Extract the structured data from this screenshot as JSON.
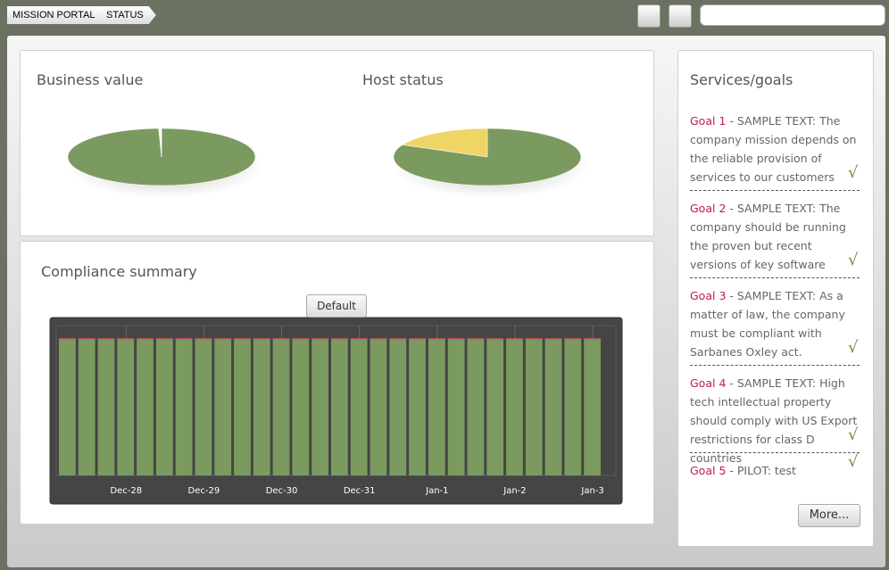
{
  "breadcrumbs": [
    "MISSION PORTAL",
    "STATUS"
  ],
  "chart_data": [
    {
      "type": "pie",
      "title": "Business value",
      "values": [
        99.5,
        0.5
      ],
      "colors": [
        "#7b9a5f",
        "#ffffff"
      ]
    },
    {
      "type": "pie",
      "title": "Host status",
      "values": [
        82,
        18
      ],
      "colors": [
        "#7b9a5f",
        "#efd565"
      ]
    },
    {
      "type": "bar",
      "title": "Compliance summary",
      "tab": "Default",
      "categories": [
        null,
        null,
        null,
        "Dec-28",
        null,
        null,
        null,
        "Dec-29",
        null,
        null,
        null,
        "Dec-30",
        null,
        null,
        null,
        "Dec-31",
        null,
        null,
        null,
        "Jan-1",
        null,
        null,
        null,
        "Jan-2",
        null,
        null,
        null,
        "Jan-3"
      ],
      "values": [
        100,
        100,
        100,
        100,
        100,
        100,
        100,
        100,
        100,
        100,
        100,
        100,
        100,
        100,
        100,
        100,
        100,
        100,
        100,
        100,
        100,
        100,
        100,
        100,
        100,
        100,
        100,
        100
      ],
      "color": "#7b9a5f",
      "ylim": [
        0,
        100
      ]
    }
  ],
  "services": {
    "title": "Services/goals",
    "goals": [
      {
        "label": "Goal 1",
        "text": " - SAMPLE TEXT: The company mission depends on the reliable provision of services to our customers"
      },
      {
        "label": "Goal 2",
        "text": " - SAMPLE TEXT: The company should be running the proven but recent versions of key software"
      },
      {
        "label": "Goal 3",
        "text": " - SAMPLE TEXT: As a matter of law, the company must be compliant with Sarbanes Oxley act."
      },
      {
        "label": "Goal 4",
        "text": " - SAMPLE TEXT: High tech intellectual property should comply with US Export restrictions for class D countries"
      },
      {
        "label": "Goal 5",
        "text": " - PILOT: test"
      }
    ],
    "more": "More..."
  }
}
